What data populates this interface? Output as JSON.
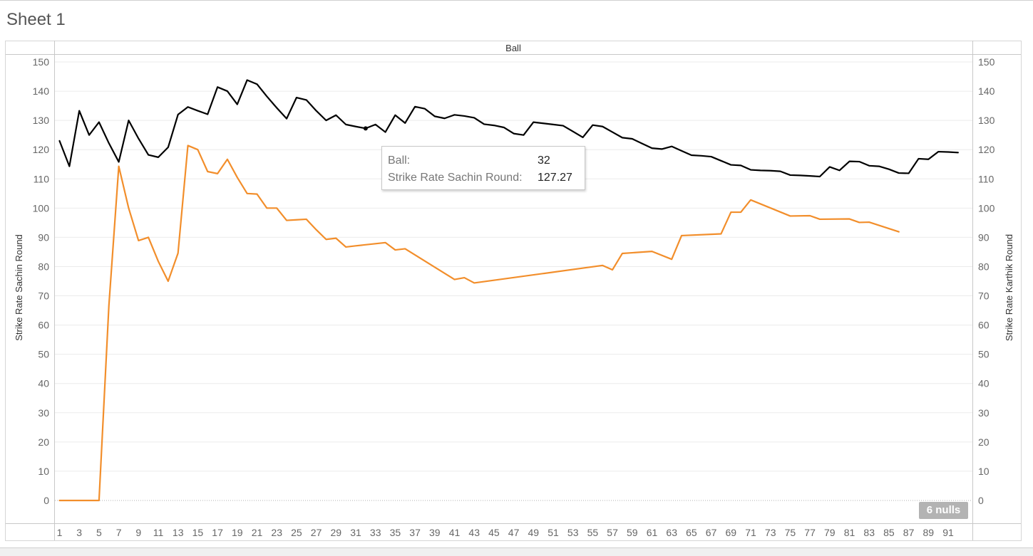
{
  "sheet": {
    "title": "Sheet 1"
  },
  "tooltip": {
    "ball_label": "Ball:",
    "ball_value": "32",
    "sr_label": "Strike Rate Sachin Round:",
    "sr_value": "127.27"
  },
  "nulls_badge": "6 nulls",
  "colors": {
    "sachin": "#000000",
    "karthik": "#f28e2b",
    "grid": "#ebebeb",
    "axis": "#c8c8c8"
  },
  "chart_data": {
    "type": "line",
    "title": "",
    "xlabel": "Ball",
    "ylabel": "Strike Rate Sachin Round",
    "ylabel_right": "Strike Rate Karthik Round",
    "xlim": [
      1,
      93
    ],
    "ylim": [
      0,
      150
    ],
    "ylim_right": [
      0,
      150
    ],
    "grid": true,
    "x_ticks": [
      1,
      3,
      5,
      7,
      9,
      11,
      13,
      15,
      17,
      19,
      21,
      23,
      25,
      27,
      29,
      31,
      33,
      35,
      37,
      39,
      41,
      43,
      45,
      47,
      49,
      51,
      53,
      55,
      57,
      59,
      61,
      63,
      65,
      67,
      69,
      71,
      73,
      75,
      77,
      79,
      81,
      83,
      85,
      87,
      89,
      91
    ],
    "y_ticks": [
      0,
      10,
      20,
      30,
      40,
      50,
      60,
      70,
      80,
      90,
      100,
      110,
      120,
      130,
      140,
      150
    ],
    "highlight": {
      "series": "Strike Rate Sachin Round",
      "x": 32,
      "y": 127.27
    },
    "series": [
      {
        "name": "Strike Rate Sachin Round",
        "axis": "left",
        "x": [
          1,
          2,
          3,
          4,
          5,
          6,
          7,
          8,
          9,
          10,
          11,
          12,
          13,
          14,
          15,
          16,
          17,
          18,
          19,
          20,
          21,
          22,
          23,
          24,
          25,
          26,
          27,
          28,
          29,
          30,
          31,
          32,
          33,
          34,
          35,
          36,
          37,
          38,
          39,
          40,
          41,
          42,
          43,
          44,
          45,
          46,
          47,
          48,
          49,
          50,
          51,
          52,
          53,
          54,
          55,
          56,
          57,
          58,
          59,
          60,
          61,
          62,
          63,
          64,
          65,
          66,
          67,
          68,
          69,
          70,
          71,
          72,
          73,
          74,
          75,
          76,
          77,
          78,
          79,
          80,
          81,
          82,
          83,
          84,
          85,
          86,
          87,
          88,
          89,
          90,
          91,
          92
        ],
        "values": [
          123,
          114.3,
          133.3,
          125,
          129.4,
          122.2,
          115.8,
          130,
          123.8,
          118.2,
          117.4,
          120.8,
          132,
          134.6,
          133.3,
          132.1,
          141.4,
          140,
          135.5,
          143.8,
          142.4,
          138.2,
          134.3,
          130.6,
          137.8,
          137,
          133.3,
          130,
          131.8,
          128.6,
          127.9,
          127.27,
          128.6,
          126,
          131.8,
          129.1,
          134.7,
          134,
          131.4,
          130.7,
          131.9,
          131.5,
          130.9,
          128.7,
          128.3,
          127.6,
          125.5,
          125,
          129.4,
          129,
          128.6,
          128.2,
          126.2,
          124.2,
          128.4,
          127.9,
          126,
          124.1,
          123.7,
          122.1,
          120.5,
          120.2,
          121.1,
          119.6,
          118.1,
          117.9,
          117.6,
          116.2,
          114.8,
          114.6,
          113.1,
          112.9,
          112.8,
          112.6,
          111.3,
          111.2,
          111,
          110.8,
          114.1,
          112.9,
          116,
          115.9,
          114.5,
          114.3,
          113.3,
          112,
          111.9,
          116.9,
          116.7,
          119.3,
          119.2,
          119
        ]
      },
      {
        "name": "Strike Rate Karthik Round",
        "axis": "right",
        "x": [
          1,
          2,
          3,
          4,
          5,
          6,
          7,
          8,
          9,
          10,
          11,
          12,
          13,
          14,
          15,
          16,
          17,
          18,
          19,
          20,
          21,
          22,
          23,
          24,
          25,
          26,
          27,
          28,
          29,
          30,
          31,
          34,
          35,
          36,
          41,
          42,
          43,
          56,
          57,
          58,
          61,
          63,
          64,
          68,
          69,
          70,
          71,
          75,
          77,
          78,
          81,
          82,
          83,
          86
        ],
        "values": [
          0,
          0,
          0,
          0,
          0,
          66.7,
          114.3,
          100,
          88.9,
          90,
          81.8,
          75,
          84.6,
          121.4,
          120,
          112.5,
          111.8,
          116.7,
          110.5,
          105,
          104.8,
          100,
          100,
          95.8,
          96,
          96.2,
          92.6,
          89.3,
          89.7,
          86.7,
          87.1,
          88.2,
          85.7,
          86.1,
          75.6,
          76.2,
          74.4,
          80.4,
          78.9,
          84.5,
          85.2,
          82.5,
          90.6,
          91.2,
          98.6,
          98.6,
          102.8,
          97.3,
          97.4,
          96.2,
          96.3,
          95.1,
          95.2,
          91.9
        ]
      }
    ]
  }
}
